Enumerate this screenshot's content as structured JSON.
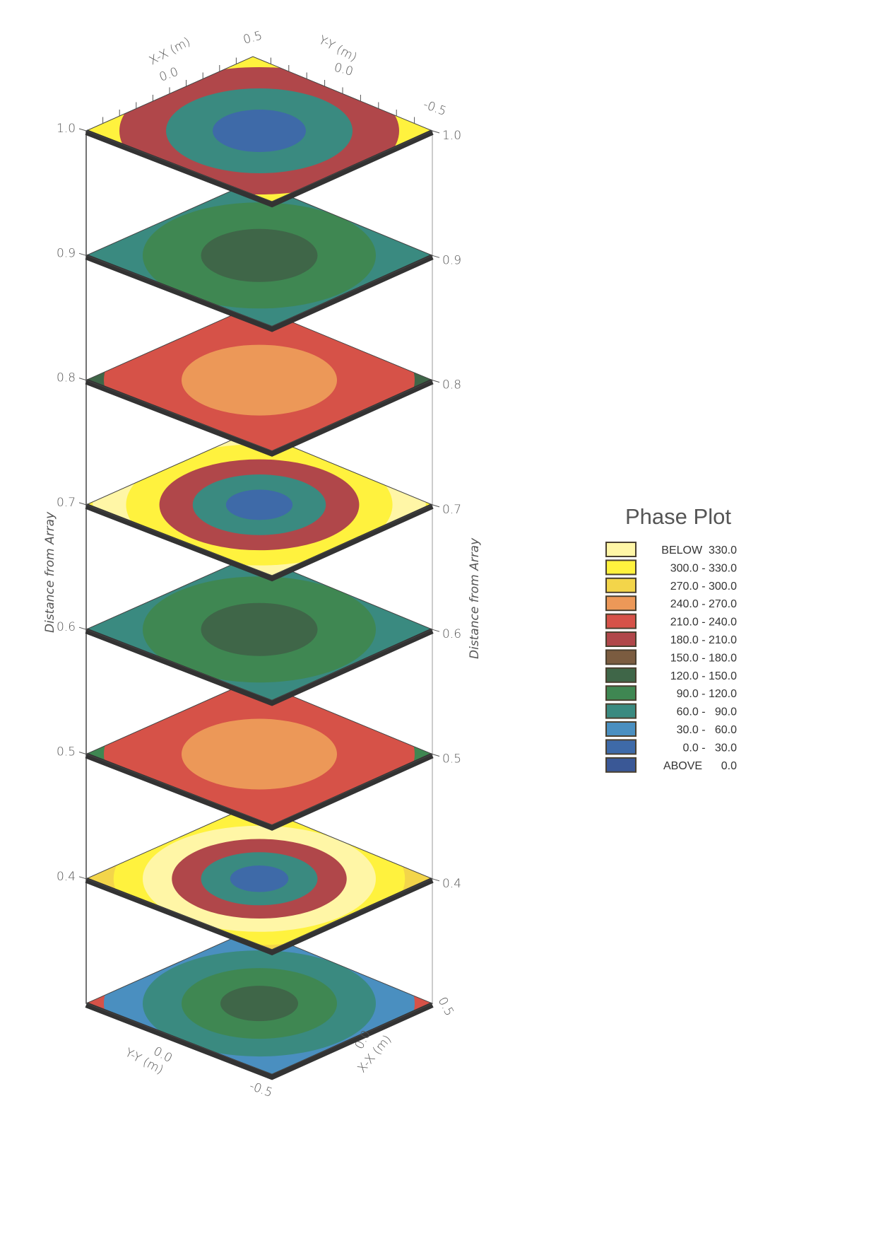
{
  "chart_data": {
    "type": "heatmap",
    "subtype": "stacked 3D contour slices",
    "title": "Phase Plot",
    "axes": {
      "vertical_label": "Distance from Array",
      "x_label": "X-X (m)",
      "y_label": "Y-Y (m)",
      "x_ticks": [
        "0.5",
        "0.0",
        "-0.5"
      ],
      "y_ticks": [
        "0.5",
        "0.0",
        "-0.5"
      ],
      "level_ticks": [
        "1.0",
        "0.9",
        "0.8",
        "0.7",
        "0.6",
        "0.5",
        "0.4"
      ],
      "top_labels": {
        "x_axis": "X-X (m)",
        "x_zero": "0.0",
        "corner": "0.5",
        "y_axis": "Y-Y (m)",
        "y_zero": "0.0",
        "y_end": "-0.5"
      },
      "bottom_labels": {
        "y_axis": "Y-Y (m)",
        "y_zero": "0.0",
        "x_axis": "X-X (m)",
        "x_zero": "0.0",
        "x_end": "0.5",
        "corner": "-0.5"
      }
    },
    "legend": [
      {
        "label": "BELOW  330.0",
        "color": "#fff6a6"
      },
      {
        "label": "300.0 - 330.0",
        "color": "#fff23e"
      },
      {
        "label": "270.0 - 300.0",
        "color": "#f3d54a"
      },
      {
        "label": "240.0 - 270.0",
        "color": "#ec9858"
      },
      {
        "label": "210.0 - 240.0",
        "color": "#d65248"
      },
      {
        "label": "180.0 - 210.0",
        "color": "#b0474a"
      },
      {
        "label": "150.0 - 180.0",
        "color": "#7b5c40"
      },
      {
        "label": "120.0 - 150.0",
        "color": "#3f6648"
      },
      {
        "label": "90.0 - 120.0",
        "color": "#3f8752"
      },
      {
        "label": "60.0 -   90.0",
        "color": "#3a8a80"
      },
      {
        "label": "30.0 -   60.0",
        "color": "#4a8fc0"
      },
      {
        "label": "0.0 -   30.0",
        "color": "#3e6aa8"
      },
      {
        "label": "ABOVE      0.0",
        "color": "#3a5896"
      }
    ],
    "slices": [
      {
        "level": "1.0",
        "bands": [
          0,
          1,
          5,
          9,
          11
        ]
      },
      {
        "level": "0.9",
        "bands": [
          10,
          9,
          8,
          7
        ]
      },
      {
        "level": "0.8",
        "bands": [
          7,
          4,
          3
        ]
      },
      {
        "level": "0.7",
        "bands": [
          3,
          1,
          0,
          1,
          5,
          9,
          11
        ]
      },
      {
        "level": "0.6",
        "bands": [
          10,
          9,
          8,
          7
        ]
      },
      {
        "level": "0.5",
        "bands": [
          8,
          4,
          3
        ]
      },
      {
        "level": "0.4",
        "bands": [
          4,
          3,
          2,
          1,
          0,
          5,
          9,
          11
        ]
      },
      {
        "level": "",
        "bands": [
          1,
          4,
          10,
          9,
          8,
          7
        ]
      }
    ]
  }
}
